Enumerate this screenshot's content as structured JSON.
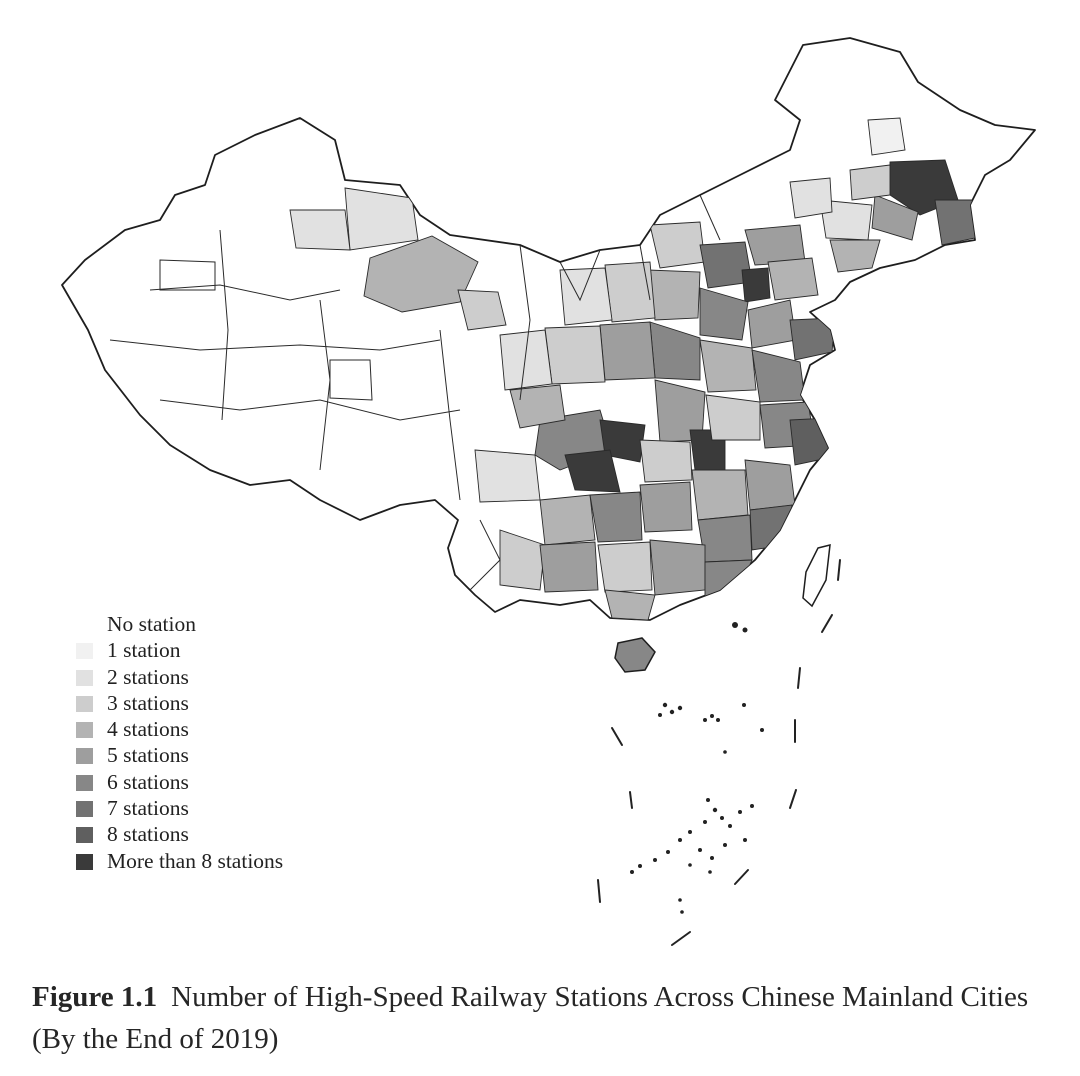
{
  "legend": {
    "items": [
      {
        "label": "No station",
        "color": "#ffffff"
      },
      {
        "label": "1 station",
        "color": "#f1f1f1"
      },
      {
        "label": "2 stations",
        "color": "#e1e1e1"
      },
      {
        "label": "3 stations",
        "color": "#cdcdcd"
      },
      {
        "label": "4 stations",
        "color": "#b3b3b3"
      },
      {
        "label": "5 stations",
        "color": "#9e9e9e"
      },
      {
        "label": "6 stations",
        "color": "#878787"
      },
      {
        "label": "7 stations",
        "color": "#727272"
      },
      {
        "label": "8 stations",
        "color": "#5f5f5f"
      },
      {
        "label": "More than 8 stations",
        "color": "#3a3a3a"
      }
    ]
  },
  "caption": {
    "label": "Figure 1.1",
    "text": "Number of High-Speed Railway Stations Across Chinese Mainland Cities (By the End of 2019)"
  }
}
